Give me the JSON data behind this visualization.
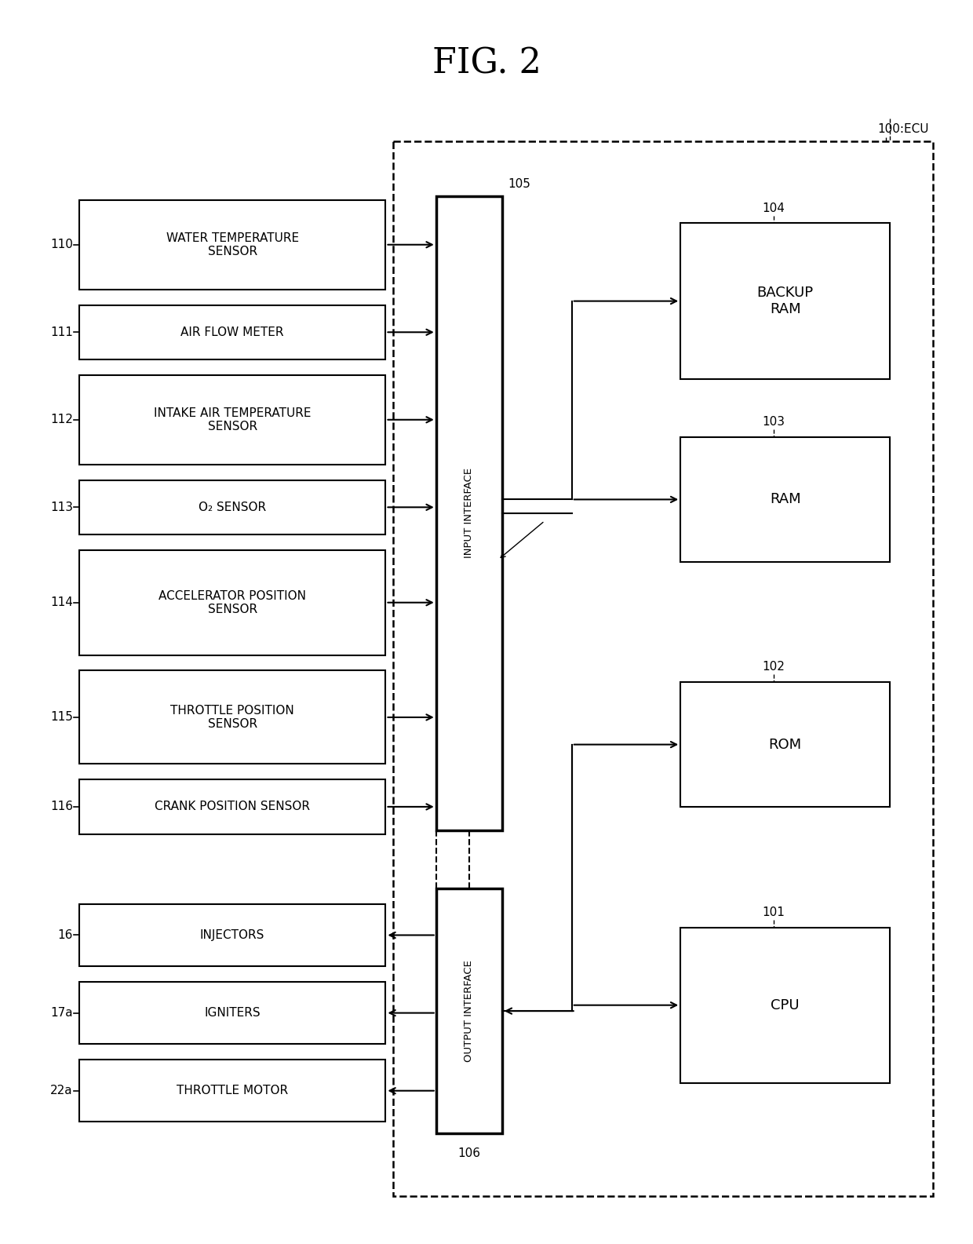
{
  "title": "FIG. 2",
  "title_fontsize": 32,
  "bg_color": "#ffffff",
  "line_color": "#000000",
  "fig_width": 12.4,
  "fig_height": 15.85,
  "ecu_label": "100:ECU",
  "input_sensors": [
    {
      "label": "WATER TEMPERATURE\nSENSOR",
      "ref": "110",
      "two_line": true
    },
    {
      "label": "AIR FLOW METER",
      "ref": "111",
      "two_line": false
    },
    {
      "label": "INTAKE AIR TEMPERATURE\nSENSOR",
      "ref": "112",
      "two_line": true
    },
    {
      "label": "O₂ SENSOR",
      "ref": "113",
      "two_line": false
    },
    {
      "label": "ACCELERATOR POSITION\nSENSOR",
      "ref": "114",
      "two_line": true
    },
    {
      "label": "THROTTLE POSITION\nSENSOR",
      "ref": "115",
      "two_line": true
    },
    {
      "label": "CRANK POSITION SENSOR",
      "ref": "116",
      "two_line": false
    }
  ],
  "output_actuators": [
    {
      "label": "INJECTORS",
      "ref": "16"
    },
    {
      "label": "IGNITERS",
      "ref": "17a"
    },
    {
      "label": "THROTTLE MOTOR",
      "ref": "22a"
    }
  ],
  "cpu_blocks": [
    {
      "label": "BACKUP\nRAM",
      "ref": "104"
    },
    {
      "label": "RAM",
      "ref": "103"
    },
    {
      "label": "ROM",
      "ref": "102"
    },
    {
      "label": "CPU",
      "ref": "101"
    }
  ],
  "input_interface_label": "INPUT INTERFACE",
  "output_interface_label": "OUTPUT INTERFACE",
  "input_interface_ref": "105",
  "output_interface_ref": "106"
}
